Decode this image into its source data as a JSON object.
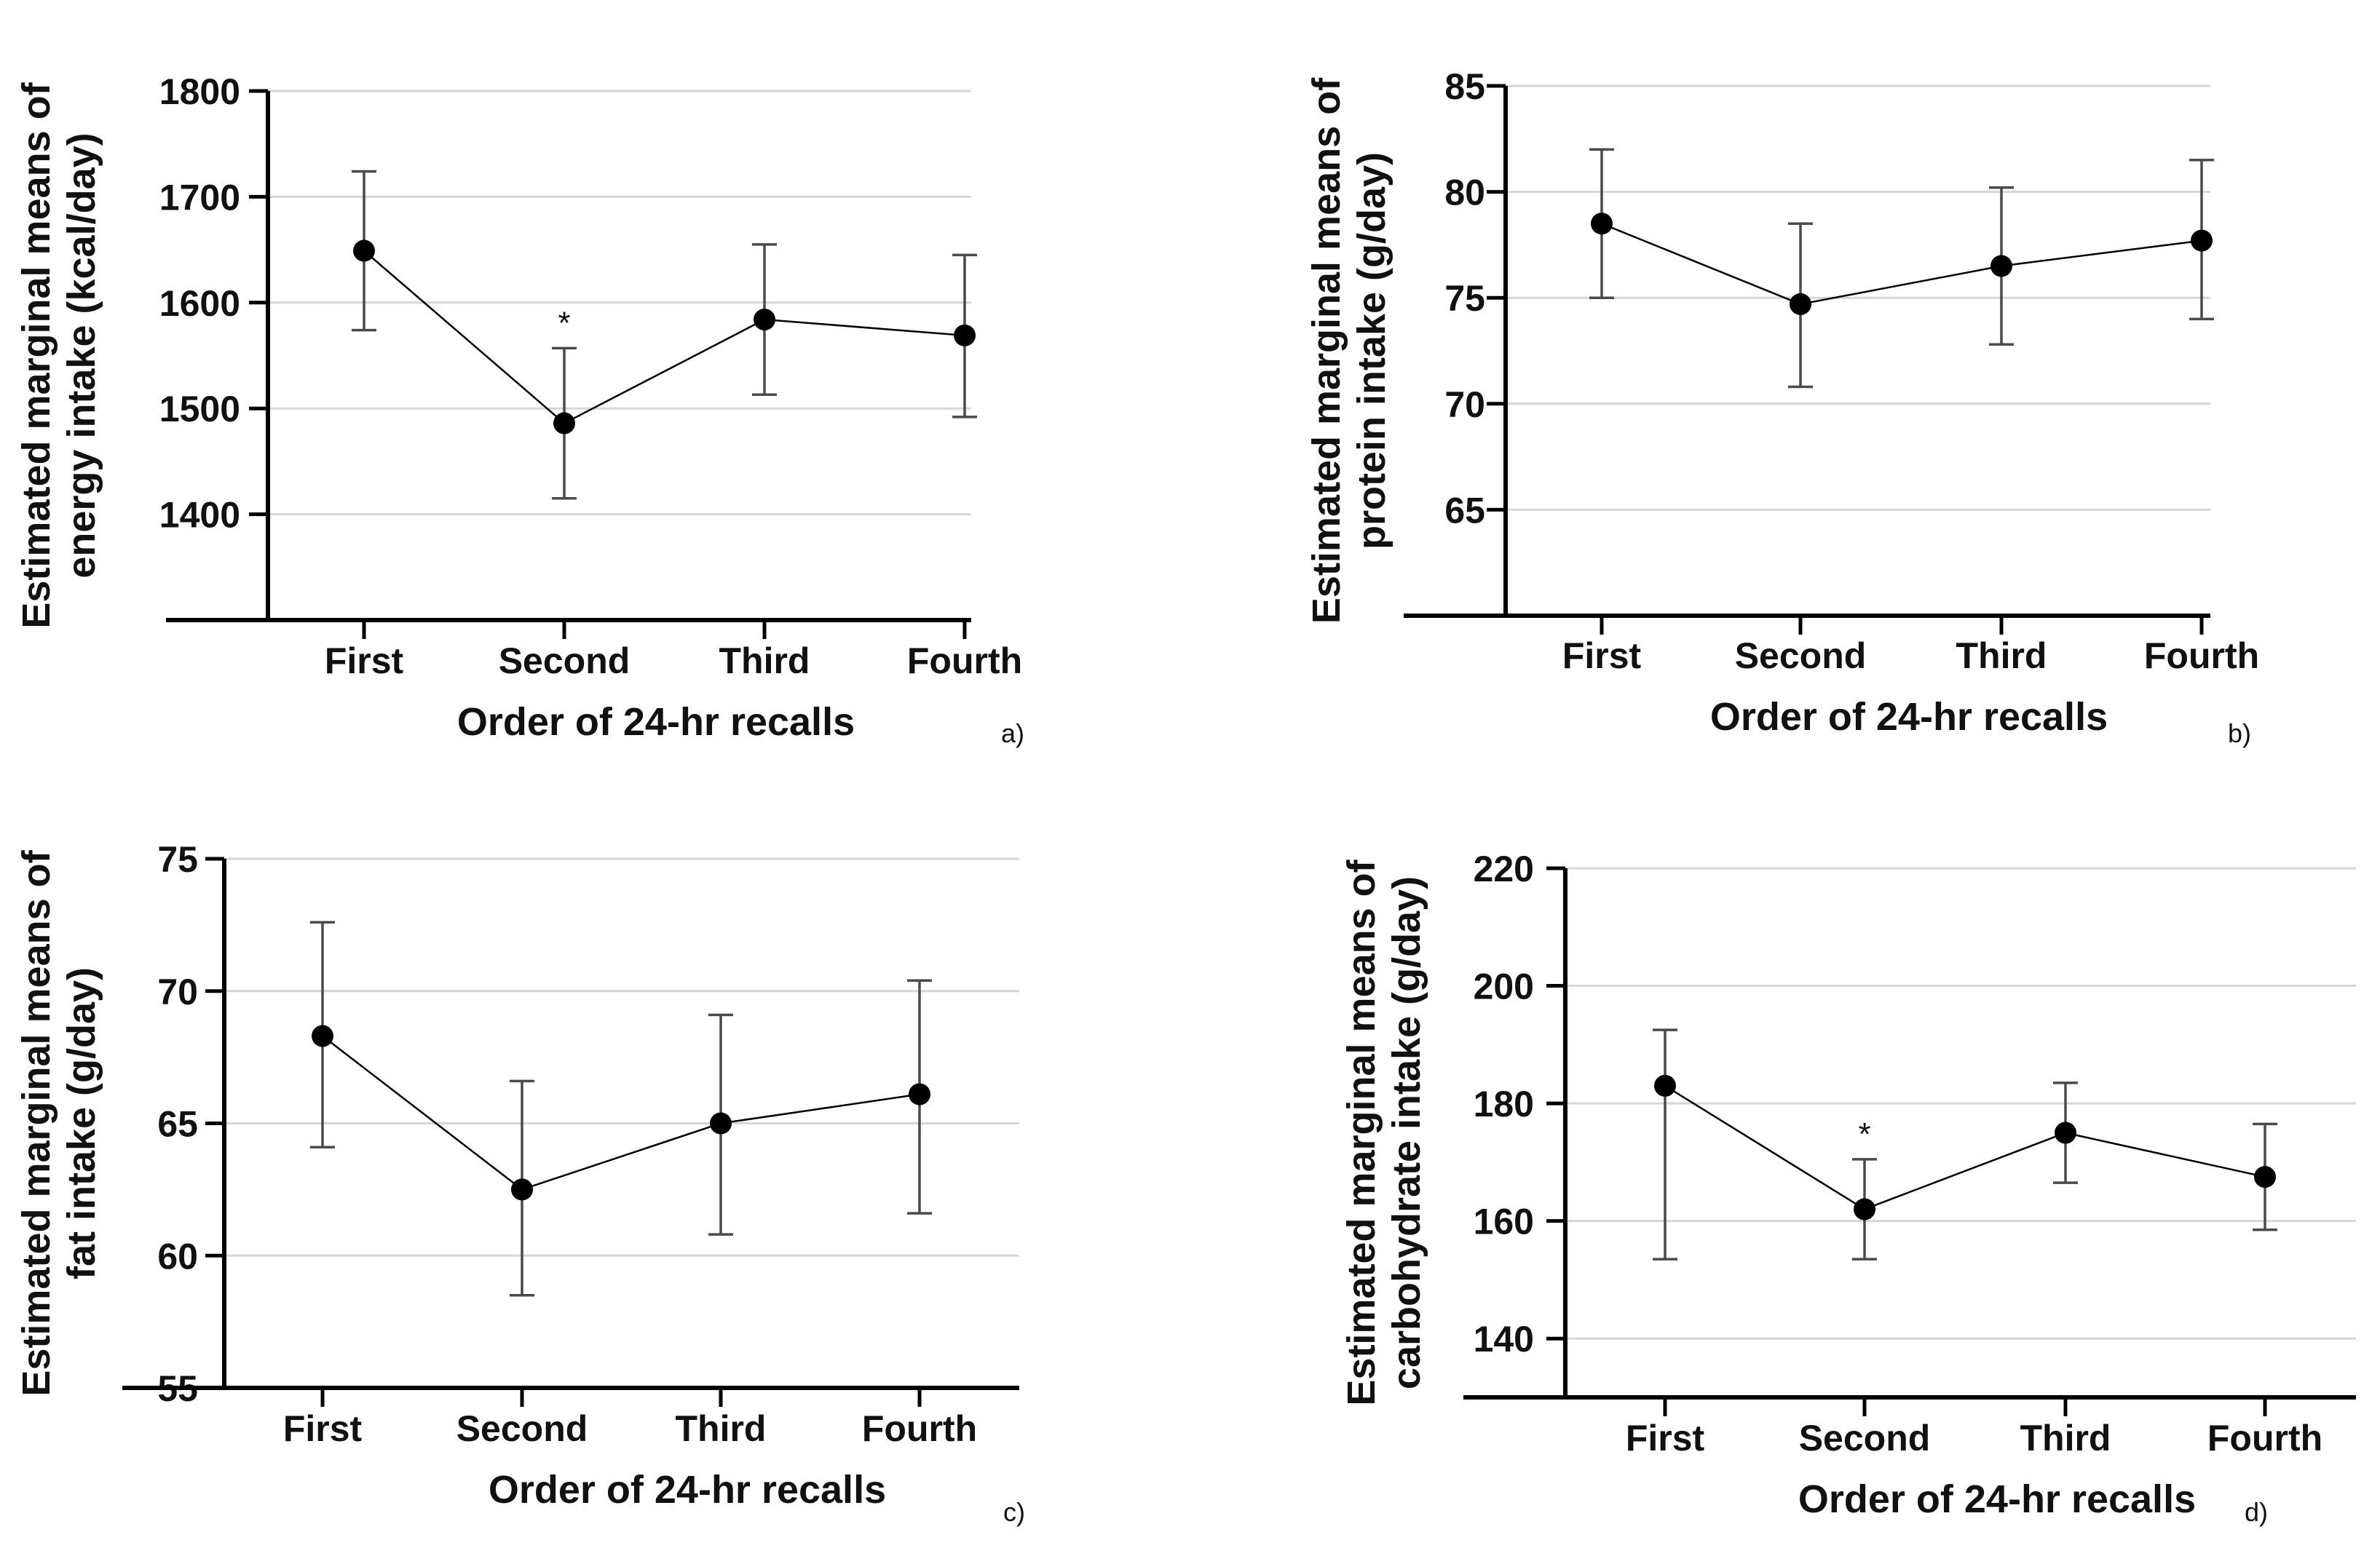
{
  "chart_data": [
    {
      "type": "line",
      "panel_label": "a)",
      "xlabel": "Order of 24-hr recalls",
      "ylabel": "Estimated marginal means of energy intake (kcal/day)",
      "ylabel_lines": [
        "Estimated marginal means of",
        "energy intake (kcal/day)"
      ],
      "categories": [
        "First",
        "Second",
        "Third",
        "Fourth"
      ],
      "ylim": [
        1300,
        1800
      ],
      "yticks": [
        1400,
        1500,
        1600,
        1700,
        1800
      ],
      "grid": true,
      "series": [
        {
          "values": [
            1649,
            1486,
            1584,
            1569
          ],
          "error_low": [
            1574,
            1415,
            1513,
            1492
          ],
          "error_high": [
            1724,
            1557,
            1655,
            1645
          ]
        }
      ],
      "annotations": [
        {
          "category": "Second",
          "text": "*"
        }
      ]
    },
    {
      "type": "line",
      "panel_label": "b)",
      "xlabel": "Order of 24-hr recalls",
      "ylabel": "Estimated marginal means of protein intake (g/day)",
      "ylabel_lines": [
        "Estimated marginal means of",
        "protein intake (g/day)"
      ],
      "categories": [
        "First",
        "Second",
        "Third",
        "Fourth"
      ],
      "ylim": [
        60,
        85
      ],
      "yticks": [
        65,
        70,
        75,
        80,
        85
      ],
      "grid": true,
      "series": [
        {
          "values": [
            78.5,
            74.7,
            76.5,
            77.7
          ],
          "error_low": [
            75.0,
            70.8,
            72.8,
            74.0
          ],
          "error_high": [
            82.0,
            78.5,
            80.2,
            81.5
          ]
        }
      ],
      "annotations": []
    },
    {
      "type": "line",
      "panel_label": "c)",
      "xlabel": "Order of 24-hr recalls",
      "ylabel": "Estimated marginal means of fat intake (g/day)",
      "ylabel_lines": [
        "Estimated marginal means of",
        "fat intake (g/day)"
      ],
      "categories": [
        "First",
        "Second",
        "Third",
        "Fourth"
      ],
      "ylim": [
        55,
        75
      ],
      "yticks": [
        55,
        60,
        65,
        70,
        75
      ],
      "grid": true,
      "series": [
        {
          "values": [
            68.3,
            62.5,
            65.0,
            66.1
          ],
          "error_low": [
            64.1,
            58.5,
            60.8,
            61.6
          ],
          "error_high": [
            72.6,
            66.6,
            69.1,
            70.4
          ]
        }
      ],
      "annotations": []
    },
    {
      "type": "line",
      "panel_label": "d)",
      "xlabel": "Order of 24-hr recalls",
      "ylabel": "Estimated marginal means of carbohydrate intake (g/day)",
      "ylabel_lines": [
        "Estimated marginal means of",
        "carbohydrate intake (g/day)"
      ],
      "categories": [
        "First",
        "Second",
        "Third",
        "Fourth"
      ],
      "ylim": [
        130,
        220
      ],
      "yticks": [
        140,
        160,
        180,
        200,
        220
      ],
      "grid": true,
      "series": [
        {
          "values": [
            183,
            162,
            175,
            167.5
          ],
          "error_low": [
            153.5,
            153.5,
            166.5,
            158.5
          ],
          "error_high": [
            192.5,
            170.5,
            183.5,
            176.5
          ]
        }
      ],
      "annotations": [
        {
          "category": "Second",
          "text": "*"
        }
      ]
    }
  ]
}
